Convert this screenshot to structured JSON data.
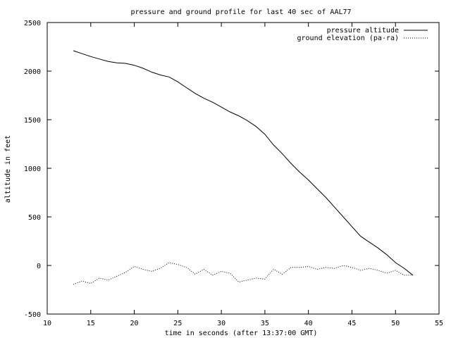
{
  "chart_data": {
    "type": "line",
    "title": "pressure and ground profile for last 40 sec of AAL77",
    "xlabel": "time in seconds (after 13:37:00 GMT)",
    "ylabel": "altitude in feet",
    "xlim": [
      10,
      55
    ],
    "ylim": [
      -500,
      2500
    ],
    "xticks": [
      10,
      15,
      20,
      25,
      30,
      35,
      40,
      45,
      50,
      55
    ],
    "yticks": [
      -500,
      0,
      500,
      1000,
      1500,
      2000,
      2500
    ],
    "grid": false,
    "legend_position": "top-right",
    "series": [
      {
        "name": "pressure altitude",
        "style": "solid",
        "color": "#000000",
        "x": [
          13,
          14,
          15,
          16,
          17,
          18,
          19,
          20,
          21,
          22,
          23,
          24,
          25,
          26,
          27,
          28,
          29,
          30,
          31,
          32,
          33,
          34,
          35,
          36,
          37,
          38,
          39,
          40,
          41,
          42,
          43,
          44,
          45,
          46,
          47,
          48,
          49,
          50,
          51,
          52
        ],
        "y": [
          2210,
          2180,
          2150,
          2125,
          2100,
          2085,
          2080,
          2060,
          2030,
          1990,
          1960,
          1940,
          1890,
          1830,
          1770,
          1720,
          1680,
          1630,
          1580,
          1540,
          1490,
          1430,
          1350,
          1240,
          1150,
          1050,
          960,
          880,
          790,
          700,
          600,
          500,
          400,
          300,
          240,
          180,
          110,
          30,
          -30,
          -100
        ]
      },
      {
        "name": "ground elevation (pa-ra)",
        "style": "dotted",
        "color": "#000000",
        "x": [
          13,
          14,
          15,
          16,
          17,
          18,
          19,
          20,
          21,
          22,
          23,
          24,
          25,
          26,
          27,
          28,
          29,
          30,
          31,
          32,
          33,
          34,
          35,
          36,
          37,
          38,
          39,
          40,
          41,
          42,
          43,
          44,
          45,
          46,
          47,
          48,
          49,
          50,
          51,
          52
        ],
        "y": [
          -195,
          -160,
          -185,
          -130,
          -150,
          -110,
          -70,
          -10,
          -40,
          -60,
          -30,
          30,
          10,
          -20,
          -90,
          -40,
          -100,
          -60,
          -80,
          -170,
          -150,
          -130,
          -140,
          -40,
          -90,
          -20,
          -20,
          -10,
          -40,
          -20,
          -30,
          0,
          -20,
          -50,
          -30,
          -50,
          -80,
          -50,
          -100,
          -100
        ]
      }
    ]
  }
}
